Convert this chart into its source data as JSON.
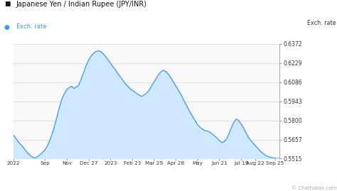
{
  "title": "Japanese Yen / Indian Rupee (JPY/INR)",
  "title_square_color": "#1a1a1a",
  "legend_label": "Exch. rate",
  "legend_dot_color": "#3399ff",
  "ylabel_right": "Exch. rate",
  "watermark": "© Chartoasis.com",
  "line_color": "#3399ff",
  "fill_color": "#d0e8ff",
  "yticks": [
    0.5515,
    0.5657,
    0.58,
    0.5943,
    0.6086,
    0.6229,
    0.6372
  ],
  "ylim": [
    0.5515,
    0.6372
  ],
  "bg_color": "#ffffff",
  "plot_bg_color": "#f8f8f8",
  "grid_color": "#dddddd",
  "y_values": [
    0.569,
    0.5665,
    0.564,
    0.562,
    0.56,
    0.5575,
    0.5555,
    0.5535,
    0.5525,
    0.552,
    0.553,
    0.5545,
    0.556,
    0.558,
    0.561,
    0.565,
    0.57,
    0.576,
    0.583,
    0.59,
    0.596,
    0.6,
    0.603,
    0.6045,
    0.6055,
    0.604,
    0.605,
    0.6065,
    0.611,
    0.616,
    0.621,
    0.625,
    0.628,
    0.63,
    0.6315,
    0.632,
    0.6315,
    0.63,
    0.628,
    0.6255,
    0.623,
    0.6205,
    0.618,
    0.6155,
    0.613,
    0.6105,
    0.608,
    0.606,
    0.604,
    0.6025,
    0.6015,
    0.6,
    0.599,
    0.598,
    0.599,
    0.6005,
    0.6025,
    0.6055,
    0.6085,
    0.6115,
    0.6145,
    0.6165,
    0.6175,
    0.6165,
    0.6145,
    0.612,
    0.609,
    0.606,
    0.603,
    0.6,
    0.5965,
    0.593,
    0.5895,
    0.586,
    0.583,
    0.58,
    0.577,
    0.575,
    0.5735,
    0.5725,
    0.572,
    0.5715,
    0.57,
    0.5685,
    0.567,
    0.565,
    0.5635,
    0.564,
    0.566,
    0.57,
    0.5745,
    0.5785,
    0.581,
    0.58,
    0.5775,
    0.5745,
    0.571,
    0.5675,
    0.565,
    0.563,
    0.561,
    0.559,
    0.557,
    0.5555,
    0.554,
    0.553,
    0.5525,
    0.552,
    0.5518,
    0.5516,
    0.5515
  ],
  "xtick_labels": [
    "2022",
    "Sep",
    "Nov",
    "Dec 27",
    "2023",
    "Feb 23",
    "Mar 29",
    "Apr 28",
    "May",
    "Jun 21",
    "Jul 19",
    "Aug 22",
    "Sep 25"
  ],
  "xtick_positions_frac": [
    0.0,
    0.118,
    0.2,
    0.282,
    0.364,
    0.446,
    0.527,
    0.609,
    0.691,
    0.773,
    0.855,
    0.909,
    0.982
  ]
}
